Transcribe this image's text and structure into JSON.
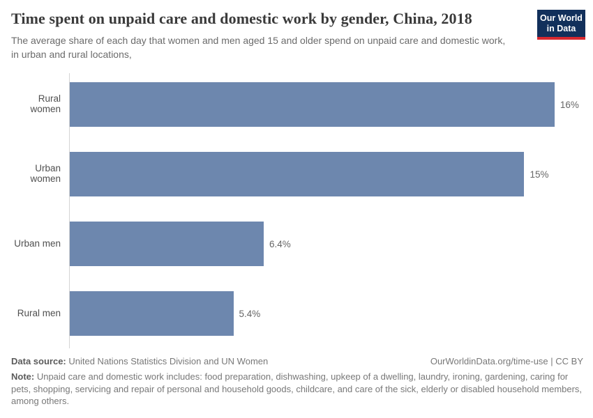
{
  "header": {
    "title": "Time spent on unpaid care and domestic work by gender, China, 2018",
    "subtitle": "The average share of each day that women and men aged 15 and older spend on unpaid care and domestic work, in urban and rural locations,"
  },
  "logo": {
    "line1": "Our World",
    "line2": "in Data",
    "bg_color": "#12305b",
    "accent_color": "#d8282f"
  },
  "chart_data": {
    "type": "bar",
    "orientation": "horizontal",
    "title": "Time spent on unpaid care and domestic work by gender, China, 2018",
    "categories": [
      "Rural women",
      "Urban women",
      "Urban men",
      "Rural men"
    ],
    "values": [
      16,
      15,
      6.4,
      5.4
    ],
    "value_labels": [
      "16%",
      "15%",
      "6.4%",
      "5.4%"
    ],
    "unit": "% of each day",
    "xlabel": "",
    "ylabel": "",
    "xlim": [
      0,
      16.9
    ],
    "grid": false,
    "legend": false,
    "bar_color": "#6d87ae",
    "axis_line_color": "#d4d4d4"
  },
  "footer": {
    "data_source_label": "Data source:",
    "data_source_text": " United Nations Statistics Division and UN Women",
    "attribution": "OurWorldinData.org/time-use | CC BY",
    "note_label": "Note:",
    "note_text": " Unpaid care and domestic work includes: food preparation, dishwashing, upkeep of a dwelling, laundry, ironing, gardening, caring for pets, shopping, servicing and repair of personal and household goods, childcare, and care of the sick, elderly or disabled household members, among others."
  }
}
